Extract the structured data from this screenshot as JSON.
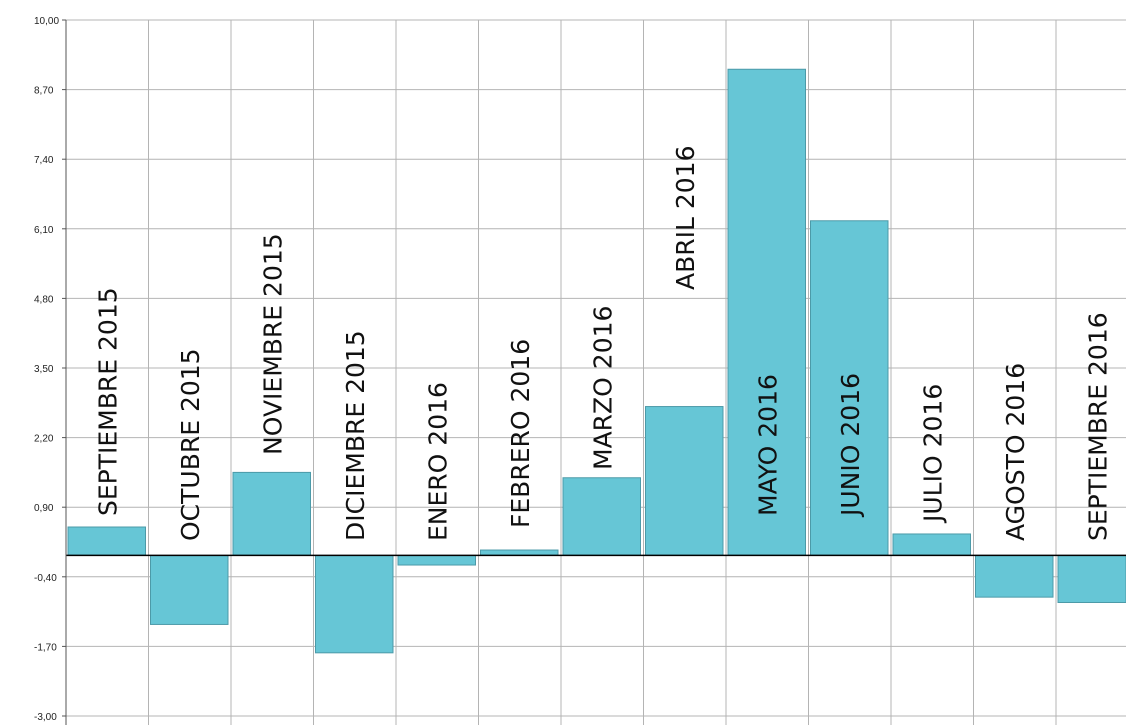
{
  "chart_data": {
    "type": "bar",
    "title": "",
    "xlabel": "",
    "ylabel": "",
    "ylim": [
      -3.0,
      10.0
    ],
    "yticks": [
      "10,00",
      "8,70",
      "7,40",
      "6,10",
      "4,80",
      "3,50",
      "2,20",
      "0,90",
      "-0,40",
      "-1,70",
      "-3,00"
    ],
    "ytick_values": [
      10.0,
      8.7,
      7.4,
      6.1,
      4.8,
      3.5,
      2.2,
      0.9,
      -0.4,
      -1.7,
      -3.0
    ],
    "categories": [
      "SEPTIEMBRE 2015",
      "OCTUBRE 2015",
      "NOVIEMBRE 2015",
      "DICIEMBRE 2015",
      "ENERO 2016",
      "FEBRERO 2016",
      "MARZO 2016",
      "ABRIL 2016",
      "MAYO 2016",
      "JUNIO 2016",
      "JULIO 2016",
      "AGOSTO 2016",
      "SEPTIEMBRE 2016"
    ],
    "values": [
      0.53,
      -1.29,
      1.55,
      -1.82,
      -0.18,
      0.1,
      1.45,
      2.78,
      9.08,
      6.25,
      0.4,
      -0.78,
      -0.88
    ],
    "grid": true,
    "legend": "none",
    "colors": {
      "bar_fill": "#66c6d6",
      "bar_stroke": "#4c9aa8",
      "grid": "#b4b4b4",
      "zero_line": "#000000",
      "axis": "#555555"
    }
  }
}
